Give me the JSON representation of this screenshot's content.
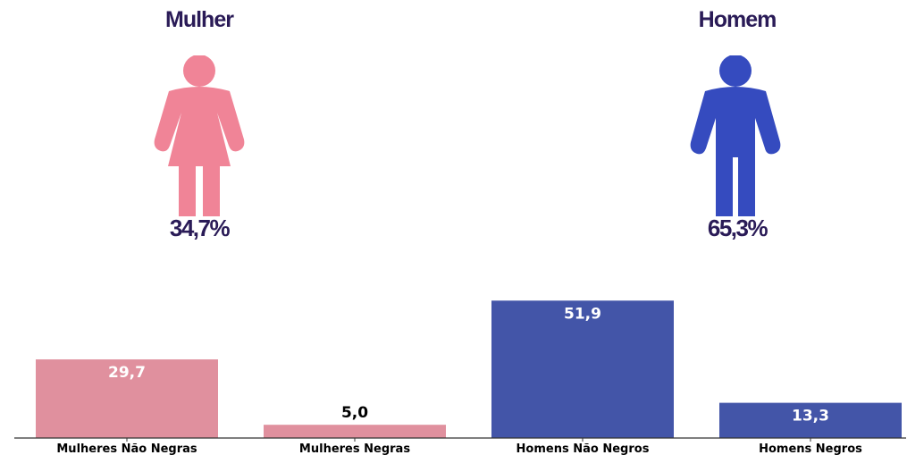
{
  "genders": {
    "female": {
      "title": "Mulher",
      "percent": "34,7%",
      "icon": "female-figure-icon",
      "color": "#f08497"
    },
    "male": {
      "title": "Homem",
      "percent": "65,3%",
      "icon": "male-figure-icon",
      "color": "#354bbf"
    }
  },
  "colors": {
    "text_dark": "#2a1b57",
    "bar_female": "#e0909e",
    "bar_male": "#4355a8"
  },
  "chart_data": {
    "type": "bar",
    "categories": [
      "Mulheres Não Negras",
      "Mulheres Negras",
      "Homens Não Negros",
      "Homens Negros"
    ],
    "values": [
      29.7,
      5.0,
      51.9,
      13.3
    ],
    "value_labels": [
      "29,7",
      "5,0",
      "51,9",
      "13,3"
    ],
    "ylim": [
      0,
      52
    ],
    "grid": false,
    "title": "",
    "xlabel": "",
    "ylabel": ""
  }
}
